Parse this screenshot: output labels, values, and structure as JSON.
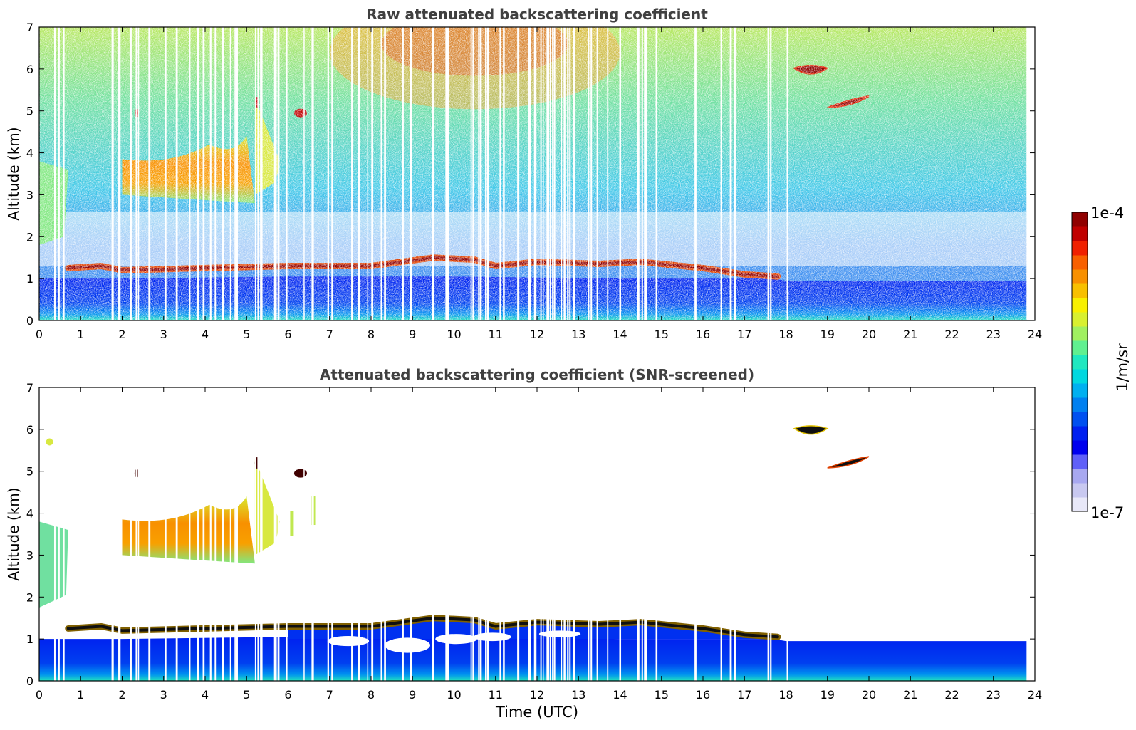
{
  "figure": {
    "colorbar": {
      "max_label": "1e-4",
      "min_label": "1e-7",
      "unit_label": "1/m/sr",
      "colors": [
        "#e8e8f8",
        "#c8c8f0",
        "#a8a8f0",
        "#6060f8",
        "#0000ee",
        "#0020f0",
        "#0050f0",
        "#0080f0",
        "#00b0f0",
        "#00d8e0",
        "#20e8c0",
        "#60f090",
        "#a0f060",
        "#d8f030",
        "#f8f000",
        "#f8c000",
        "#f89000",
        "#f86000",
        "#f02000",
        "#c00000",
        "#900000"
      ]
    },
    "colors": {
      "axis": "#000000",
      "title": "#404040",
      "cloud": "#ffffff"
    }
  },
  "chart_data": [
    {
      "type": "heatmap",
      "title": "Raw attenuated backscattering coefficient",
      "xlabel": "",
      "ylabel": "Altitude (km)",
      "xlim": [
        0,
        24
      ],
      "ylim": [
        0,
        7
      ],
      "xticks": [
        "0",
        "1",
        "2",
        "3",
        "4",
        "5",
        "6",
        "7",
        "8",
        "9",
        "10",
        "11",
        "12",
        "13",
        "14",
        "15",
        "16",
        "17",
        "18",
        "19",
        "20",
        "21",
        "22",
        "23",
        "24"
      ],
      "yticks": [
        "0",
        "1",
        "2",
        "3",
        "4",
        "5",
        "6",
        "7"
      ],
      "data_end_time": 23.8,
      "features": {
        "boundary_layer_top_km": [
          [
            0,
            1.0
          ],
          [
            2,
            1.0
          ],
          [
            6,
            1.05
          ],
          [
            10,
            1.05
          ],
          [
            14,
            1.0
          ],
          [
            17.7,
            1.0
          ],
          [
            18,
            0.95
          ],
          [
            23.8,
            0.95
          ]
        ],
        "cloud_layer_km": [
          [
            0.7,
            1.25
          ],
          [
            1.5,
            1.3
          ],
          [
            2.0,
            1.2
          ],
          [
            6.0,
            1.3
          ],
          [
            8.0,
            1.3
          ],
          [
            9.5,
            1.5
          ],
          [
            10.5,
            1.45
          ],
          [
            11.0,
            1.3
          ],
          [
            12.0,
            1.4
          ],
          [
            13.5,
            1.35
          ],
          [
            14.5,
            1.4
          ],
          [
            16.0,
            1.25
          ],
          [
            17.0,
            1.1
          ],
          [
            17.8,
            1.05
          ]
        ],
        "elevated_aerosol_3_4km_hours": [
          2.0,
          5.2
        ],
        "cloud_6km_hours": [
          18.2,
          19.0
        ],
        "cloud_5km_hours": [
          19.0,
          20.0
        ]
      }
    },
    {
      "type": "heatmap",
      "title": "Attenuated backscattering coefficient (SNR-screened)",
      "xlabel": "Time (UTC)",
      "ylabel": "Altitude (km)",
      "xlim": [
        0,
        24
      ],
      "ylim": [
        0,
        7
      ],
      "xticks": [
        "0",
        "1",
        "2",
        "3",
        "4",
        "5",
        "6",
        "7",
        "8",
        "9",
        "10",
        "11",
        "12",
        "13",
        "14",
        "15",
        "16",
        "17",
        "18",
        "19",
        "20",
        "21",
        "22",
        "23",
        "24"
      ],
      "yticks": [
        "0",
        "1",
        "2",
        "3",
        "4",
        "5",
        "6",
        "7"
      ],
      "data_end_time": 23.8
    }
  ]
}
